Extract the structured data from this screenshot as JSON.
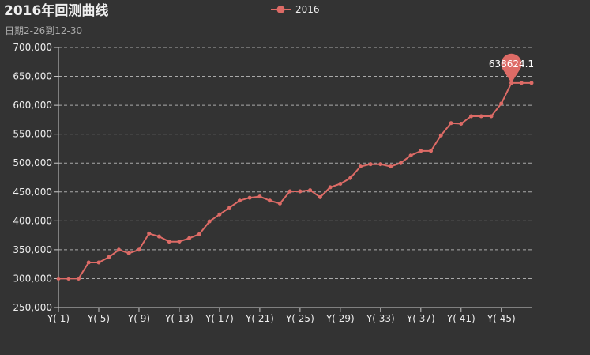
{
  "title": "2016年回测曲线",
  "subtitle": "日期2-26到12-30",
  "colors": {
    "background": "#333333",
    "series": "#dd6b66",
    "text": "#eeeeee",
    "subtext": "#aaaaaa"
  },
  "chart_data": {
    "type": "line",
    "title": "2016年回测曲线",
    "subtitle": "日期2-26到12-30",
    "legend": {
      "position": "top-center",
      "entries": [
        "2016"
      ]
    },
    "x": [
      "Y( 1)",
      "Y( 2)",
      "Y( 3)",
      "Y( 4)",
      "Y( 5)",
      "Y( 6)",
      "Y( 7)",
      "Y( 8)",
      "Y( 9)",
      "Y( 10)",
      "Y( 11)",
      "Y( 12)",
      "Y( 13)",
      "Y( 14)",
      "Y( 15)",
      "Y( 16)",
      "Y( 17)",
      "Y( 18)",
      "Y( 19)",
      "Y( 20)",
      "Y( 21)",
      "Y( 22)",
      "Y( 23)",
      "Y( 24)",
      "Y( 25)",
      "Y( 26)",
      "Y( 27)",
      "Y( 28)",
      "Y( 29)",
      "Y( 30)",
      "Y( 31)",
      "Y( 32)",
      "Y( 33)",
      "Y( 34)",
      "Y( 35)",
      "Y( 36)",
      "Y( 37)",
      "Y( 38)",
      "Y( 39)",
      "Y( 40)",
      "Y( 41)",
      "Y( 42)",
      "Y( 43)",
      "Y( 44)",
      "Y( 45)",
      "Y( 46)",
      "Y( 47)",
      "Y( 48)"
    ],
    "x_tick_labels": [
      "Y( 1)",
      "Y( 5)",
      "Y( 9)",
      "Y( 13)",
      "Y( 17)",
      "Y( 21)",
      "Y( 25)",
      "Y( 29)",
      "Y( 33)",
      "Y( 37)",
      "Y( 41)",
      "Y( 45)"
    ],
    "series": [
      {
        "name": "2016",
        "values": [
          300000,
          300000,
          300000,
          328000,
          328000,
          337000,
          350000,
          344000,
          350000,
          378000,
          373000,
          364000,
          364000,
          370000,
          377000,
          399000,
          411000,
          423000,
          435000,
          440000,
          442000,
          435000,
          430000,
          451000,
          451000,
          453000,
          441000,
          458000,
          464000,
          474000,
          494000,
          498000,
          498000,
          494000,
          500000,
          513000,
          521000,
          521000,
          548000,
          569000,
          568000,
          581000,
          581000,
          581000,
          603000,
          638624.1,
          638624.1,
          638624.1
        ]
      }
    ],
    "ylim": [
      250000,
      700000
    ],
    "y_ticks": [
      "250,000",
      "300,000",
      "350,000",
      "400,000",
      "450,000",
      "500,000",
      "550,000",
      "600,000",
      "650,000",
      "700,000"
    ],
    "grid": {
      "horizontal": true,
      "style": "dashed"
    },
    "markPoint": {
      "type": "max",
      "label": "638624.1",
      "index": 45
    }
  }
}
